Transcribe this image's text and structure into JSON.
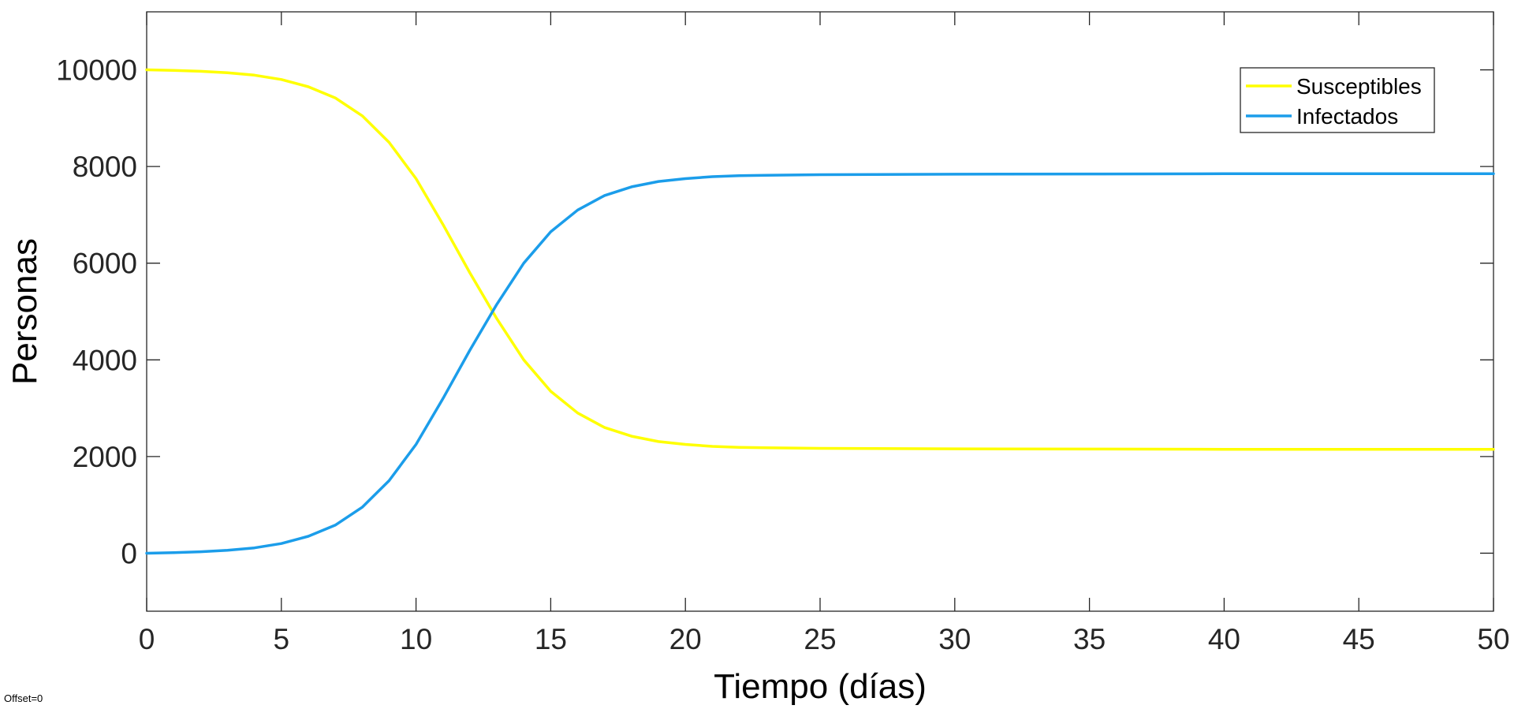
{
  "chart_data": {
    "type": "line",
    "title": "",
    "xlabel": "Tiempo (días)",
    "ylabel": "Personas",
    "xlim": [
      0,
      50
    ],
    "ylim": [
      -1200,
      11200
    ],
    "xticks": [
      0,
      5,
      10,
      15,
      20,
      25,
      30,
      35,
      40,
      45,
      50
    ],
    "yticks": [
      0,
      2000,
      4000,
      6000,
      8000,
      10000
    ],
    "grid": false,
    "legend_position": "top-right",
    "series": [
      {
        "name": "Susceptibles",
        "color": "#FFFF00",
        "x": [
          0,
          1,
          2,
          3,
          4,
          5,
          6,
          7,
          8,
          9,
          10,
          11,
          12,
          13,
          14,
          15,
          16,
          17,
          18,
          19,
          20,
          21,
          22,
          23,
          25,
          30,
          35,
          40,
          45,
          50
        ],
        "y": [
          10000,
          9990,
          9970,
          9940,
          9890,
          9800,
          9650,
          9420,
          9050,
          8500,
          7750,
          6800,
          5800,
          4850,
          4000,
          3350,
          2900,
          2600,
          2420,
          2310,
          2250,
          2210,
          2190,
          2180,
          2170,
          2160,
          2155,
          2150,
          2150,
          2150
        ]
      },
      {
        "name": "Infectados",
        "color": "#1B9DEA",
        "x": [
          0,
          1,
          2,
          3,
          4,
          5,
          6,
          7,
          8,
          9,
          10,
          11,
          12,
          13,
          14,
          15,
          16,
          17,
          18,
          19,
          20,
          21,
          22,
          23,
          25,
          30,
          35,
          40,
          45,
          50
        ],
        "y": [
          0,
          10,
          30,
          60,
          110,
          200,
          350,
          580,
          950,
          1500,
          2250,
          3200,
          4200,
          5150,
          6000,
          6650,
          7100,
          7400,
          7580,
          7690,
          7750,
          7790,
          7810,
          7820,
          7830,
          7840,
          7845,
          7850,
          7850,
          7850
        ]
      }
    ]
  },
  "footer": {
    "offset_note": "Offset=0"
  }
}
